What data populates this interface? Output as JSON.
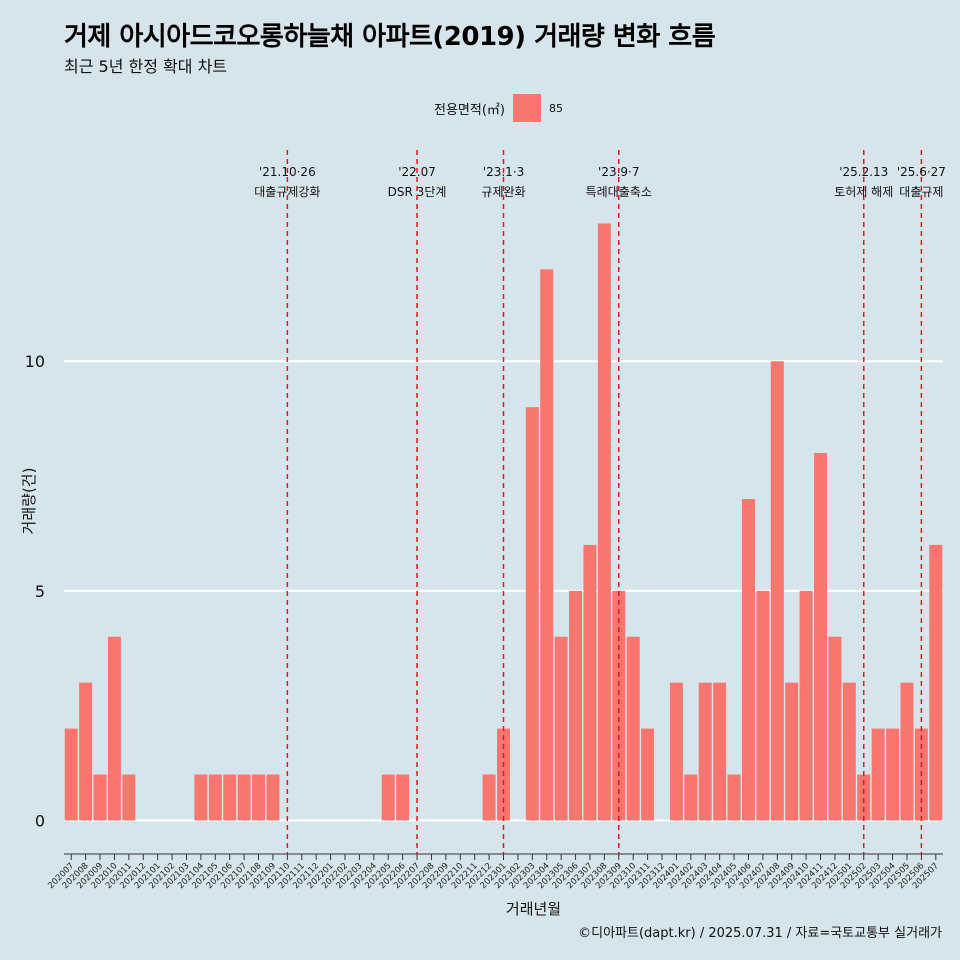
{
  "title": "거제 아시아드코오롱하늘채 아파트(2019) 거래량 변화 흐름",
  "subtitle": "최근 5년 한정 확대 차트",
  "caption": "©디아파트(dapt.kr) / 2025.07.31 / 자료=국토교통부 실거래가",
  "legend": {
    "title": "전용면적(㎡)",
    "label": "85"
  },
  "colors": {
    "bar": "#f8766d",
    "background": "#d6e4eb",
    "event_line": "#e8141c",
    "grid": "#ffffff"
  },
  "chart_data": {
    "type": "bar",
    "xlabel": "거래년월",
    "ylabel": "거래량(건)",
    "ylim": [
      -0.6,
      14.6
    ],
    "yticks": [
      0,
      5,
      10
    ],
    "grid": true,
    "legend_position": "top",
    "categories": [
      "202007",
      "202008",
      "202009",
      "202010",
      "202011",
      "202012",
      "202101",
      "202102",
      "202103",
      "202104",
      "202105",
      "202106",
      "202107",
      "202108",
      "202109",
      "202110",
      "202111",
      "202112",
      "202201",
      "202202",
      "202203",
      "202204",
      "202205",
      "202206",
      "202207",
      "202208",
      "202209",
      "202210",
      "202211",
      "202212",
      "202301",
      "202302",
      "202303",
      "202304",
      "202305",
      "202306",
      "202307",
      "202308",
      "202309",
      "202310",
      "202311",
      "202312",
      "202401",
      "202402",
      "202403",
      "202404",
      "202405",
      "202406",
      "202407",
      "202408",
      "202409",
      "202410",
      "202411",
      "202412",
      "202501",
      "202502",
      "202503",
      "202504",
      "202505",
      "202506",
      "202507"
    ],
    "series": [
      {
        "name": "85",
        "values": [
          2,
          3,
          1,
          4,
          1,
          0,
          0,
          0,
          0,
          1,
          1,
          1,
          1,
          1,
          1,
          0,
          0,
          0,
          0,
          0,
          0,
          0,
          1,
          1,
          0,
          0,
          0,
          0,
          0,
          1,
          2,
          0,
          9,
          12,
          4,
          5,
          6,
          13,
          5,
          4,
          2,
          0,
          3,
          1,
          3,
          3,
          1,
          7,
          5,
          10,
          3,
          5,
          8,
          4,
          3,
          1,
          2,
          2,
          3,
          2,
          6
        ]
      }
    ],
    "events": [
      {
        "at": "202110",
        "line1": "'21.10·26",
        "line2": "대출규제강화"
      },
      {
        "at": "202207",
        "line1": "'22.07",
        "line2": "DSR 3단계"
      },
      {
        "at": "202301",
        "line1": "'23.1·3",
        "line2": "규제완화"
      },
      {
        "at": "202309",
        "line1": "'23.9·7",
        "line2": "특례대출축소"
      },
      {
        "at": "202502",
        "line1": "'25.2.13",
        "line2": "토허제 해제"
      },
      {
        "at": "202506",
        "line1": "'25.6·27",
        "line2": "대출규제"
      }
    ]
  }
}
